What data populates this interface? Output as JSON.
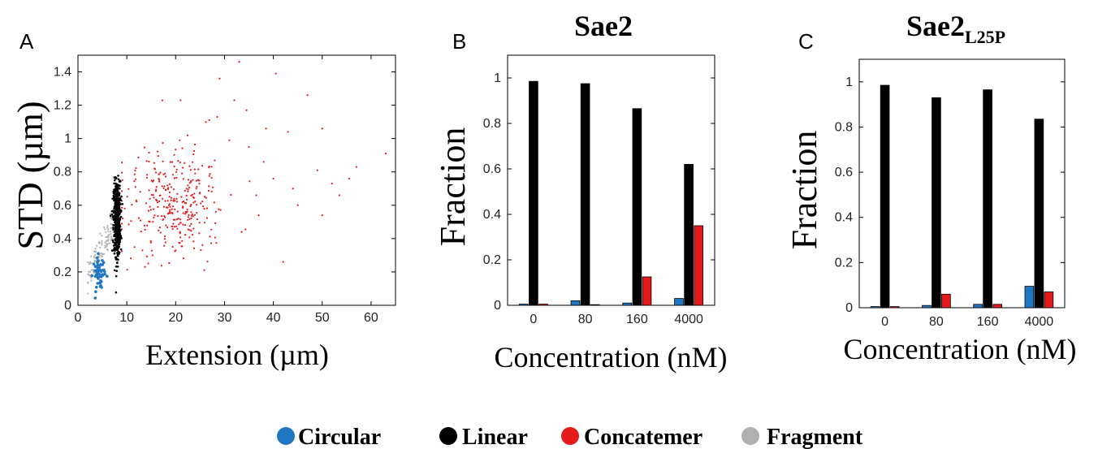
{
  "chart_data": [
    {
      "panel": "A",
      "type": "scatter",
      "title": "",
      "xlabel": "Extension (µm)",
      "ylabel": "STD (µm)",
      "xlim": [
        0,
        65
      ],
      "ylim": [
        0,
        1.5
      ],
      "xticks": [
        0,
        10,
        20,
        30,
        40,
        50,
        60
      ],
      "yticks": [
        0,
        0.2,
        0.4,
        0.6,
        0.8,
        1,
        1.2,
        1.4
      ],
      "series": [
        {
          "name": "Circular",
          "color": "#1f77c4",
          "cluster": {
            "x_center": 4.3,
            "x_spread": 0.6,
            "y_center": 0.19,
            "y_spread": 0.05,
            "count": 60
          }
        },
        {
          "name": "Linear",
          "color": "#000000",
          "cluster": {
            "x_center": 8.0,
            "x_spread": 0.35,
            "y_center": 0.52,
            "y_spread": 0.11,
            "count": 600
          }
        },
        {
          "name": "Concatemer",
          "color": "#e41a1c",
          "cluster": {
            "x_center": 18.0,
            "x_spread": 7.0,
            "y_center": 0.62,
            "y_spread": 0.16,
            "count": 320
          }
        },
        {
          "name": "Fragment",
          "color": "#b0b0b0",
          "cluster": {
            "x_center": 5.5,
            "x_spread": 1.4,
            "y_center": 0.36,
            "y_spread": 0.09,
            "count": 140
          }
        }
      ],
      "outliers": [
        {
          "x": 33,
          "y": 1.46
        },
        {
          "x": 40.5,
          "y": 1.39
        },
        {
          "x": 29,
          "y": 1.36
        },
        {
          "x": 47,
          "y": 1.26
        },
        {
          "x": 32,
          "y": 1.23
        },
        {
          "x": 21,
          "y": 1.23
        },
        {
          "x": 28.5,
          "y": 1.13
        },
        {
          "x": 34.5,
          "y": 1.17
        },
        {
          "x": 38.5,
          "y": 1.06
        },
        {
          "x": 43,
          "y": 1.04
        },
        {
          "x": 50,
          "y": 1.06
        },
        {
          "x": 63,
          "y": 0.91
        },
        {
          "x": 57,
          "y": 0.83
        },
        {
          "x": 52,
          "y": 0.73
        },
        {
          "x": 55.5,
          "y": 0.76
        },
        {
          "x": 49,
          "y": 0.81
        },
        {
          "x": 44,
          "y": 0.7
        },
        {
          "x": 40,
          "y": 0.76
        },
        {
          "x": 42,
          "y": 0.26
        },
        {
          "x": 50,
          "y": 0.54
        },
        {
          "x": 45,
          "y": 0.6
        },
        {
          "x": 37,
          "y": 0.54
        },
        {
          "x": 36.5,
          "y": 0.66
        },
        {
          "x": 31,
          "y": 0.99
        },
        {
          "x": 35,
          "y": 0.95
        },
        {
          "x": 33.5,
          "y": 0.44
        },
        {
          "x": 38,
          "y": 0.86
        },
        {
          "x": 53.5,
          "y": 0.66
        }
      ]
    },
    {
      "panel": "B",
      "type": "bar",
      "title": "Sae2",
      "xlabel": "Concentration (nM)",
      "ylabel": "Fraction",
      "categories": [
        "0",
        "80",
        "160",
        "4000"
      ],
      "ylim": [
        0,
        1.1
      ],
      "yticks": [
        0,
        0.2,
        0.4,
        0.6,
        0.8,
        1
      ],
      "series": [
        {
          "name": "Circular",
          "color": "#1f77c4",
          "values": [
            0.005,
            0.02,
            0.01,
            0.03
          ]
        },
        {
          "name": "Linear",
          "color": "#000000",
          "values": [
            0.985,
            0.975,
            0.865,
            0.62
          ]
        },
        {
          "name": "Concatemer",
          "color": "#e41a1c",
          "values": [
            0.005,
            0.003,
            0.125,
            0.35
          ]
        }
      ]
    },
    {
      "panel": "C",
      "type": "bar",
      "title": "Sae2",
      "title_subscript": "L25P",
      "xlabel": "Concentration (nM)",
      "ylabel": "Fraction",
      "categories": [
        "0",
        "80",
        "160",
        "4000"
      ],
      "ylim": [
        0,
        1.1
      ],
      "yticks": [
        0,
        0.2,
        0.4,
        0.6,
        0.8,
        1
      ],
      "series": [
        {
          "name": "Circular",
          "color": "#1f77c4",
          "values": [
            0.005,
            0.01,
            0.015,
            0.095
          ]
        },
        {
          "name": "Linear",
          "color": "#000000",
          "values": [
            0.985,
            0.93,
            0.965,
            0.835
          ]
        },
        {
          "name": "Concatemer",
          "color": "#e41a1c",
          "values": [
            0.005,
            0.06,
            0.015,
            0.07
          ]
        }
      ]
    }
  ],
  "legend": {
    "placement": "bottom-center",
    "items": [
      {
        "label": "Circular",
        "color": "#1f77c4"
      },
      {
        "label": "Linear",
        "color": "#000000"
      },
      {
        "label": "Concatemer",
        "color": "#e41a1c"
      },
      {
        "label": "Fragment",
        "color": "#b0b0b0"
      }
    ]
  }
}
